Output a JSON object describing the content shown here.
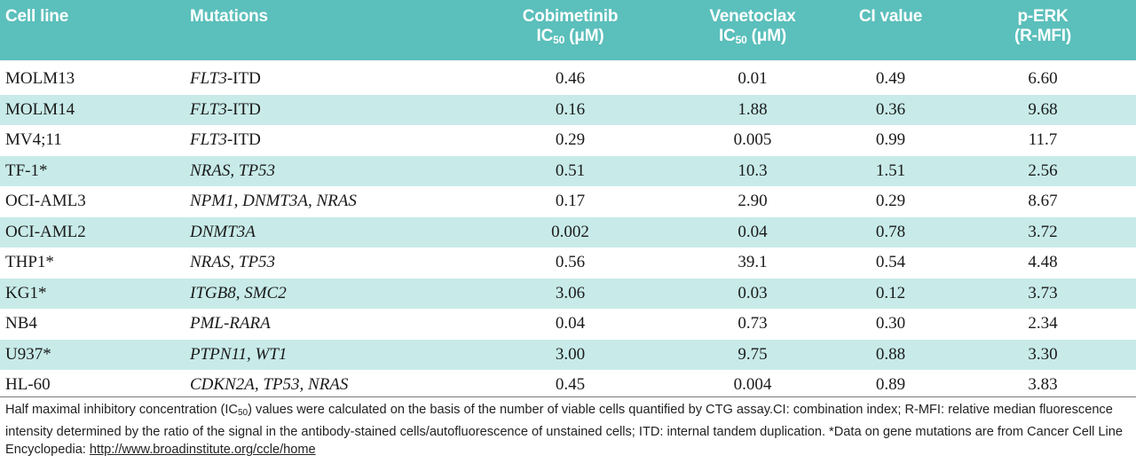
{
  "table": {
    "headers": {
      "cell_line": "Cell line",
      "mutations": "Mutations",
      "cobimetinib": {
        "line1": "Cobimetinib",
        "line2_pre": "IC",
        "line2_sub": "50",
        "line2_post": " (μM)"
      },
      "venetoclax": {
        "line1": "Venetoclax",
        "line2_pre": "IC",
        "line2_sub": "50",
        "line2_post": " (μM)"
      },
      "ci_value": "CI value",
      "perk": {
        "line1": "p-ERK",
        "line2": "(R-MFI)"
      }
    },
    "rows": [
      {
        "cell_line": "MOLM13",
        "mut_italic": "FLT3",
        "mut_plain": "-ITD",
        "cobimetinib": "0.46",
        "venetoclax": "0.01",
        "ci": "0.49",
        "perk": "6.60"
      },
      {
        "cell_line": "MOLM14",
        "mut_italic": "FLT3",
        "mut_plain": "-ITD",
        "cobimetinib": "0.16",
        "venetoclax": "1.88",
        "ci": "0.36",
        "perk": "9.68"
      },
      {
        "cell_line": "MV4;11",
        "mut_italic": "FLT3",
        "mut_plain": "-ITD",
        "cobimetinib": "0.29",
        "venetoclax": "0.005",
        "ci": "0.99",
        "perk": "11.7"
      },
      {
        "cell_line": "TF-1*",
        "mut_italic": "NRAS, TP53",
        "mut_plain": "",
        "cobimetinib": "0.51",
        "venetoclax": "10.3",
        "ci": "1.51",
        "perk": "2.56"
      },
      {
        "cell_line": "OCI-AML3",
        "mut_italic": "NPM1, DNMT3A, NRAS",
        "mut_plain": "",
        "cobimetinib": "0.17",
        "venetoclax": "2.90",
        "ci": "0.29",
        "perk": "8.67"
      },
      {
        "cell_line": "OCI-AML2",
        "mut_italic": "DNMT3A",
        "mut_plain": "",
        "cobimetinib": "0.002",
        "venetoclax": "0.04",
        "ci": "0.78",
        "perk": "3.72"
      },
      {
        "cell_line": "THP1*",
        "mut_italic": "NRAS, TP53",
        "mut_plain": "",
        "cobimetinib": "0.56",
        "venetoclax": "39.1",
        "ci": "0.54",
        "perk": "4.48"
      },
      {
        "cell_line": "KG1*",
        "mut_italic": "ITGB8, SMC2",
        "mut_plain": "",
        "cobimetinib": "3.06",
        "venetoclax": "0.03",
        "ci": "0.12",
        "perk": "3.73"
      },
      {
        "cell_line": "NB4",
        "mut_italic": "PML-RARA",
        "mut_plain": "",
        "cobimetinib": "0.04",
        "venetoclax": "0.73",
        "ci": "0.30",
        "perk": "2.34"
      },
      {
        "cell_line": "U937*",
        "mut_italic": "PTPN11, WT1",
        "mut_plain": "",
        "cobimetinib": "3.00",
        "venetoclax": "9.75",
        "ci": "0.88",
        "perk": "3.30"
      },
      {
        "cell_line": "HL-60",
        "mut_italic": "CDKN2A, TP53, NRAS",
        "mut_plain": "",
        "cobimetinib": "0.45",
        "venetoclax": "0.004",
        "ci": "0.89",
        "perk": "3.83"
      }
    ]
  },
  "footnote": {
    "part1": "Half maximal inhibitory concentration (IC",
    "sub": "50",
    "part2": ") values were calculated on the basis of the number of viable cells quantified by CTG assay.CI: combination index; R-MFI: relative median fluorescence intensity determined by the ratio of the signal in the antibody-stained cells/autofluorescence of unstained cells; ITD: internal tandem duplication. *Data on gene mutations are from Cancer Cell Line Encyclopedia: ",
    "link": "http://www.broadinstitute.org/ccle/home"
  },
  "colors": {
    "header_bg": "#5bbfbb",
    "stripe_bg": "#c8ebe9"
  }
}
